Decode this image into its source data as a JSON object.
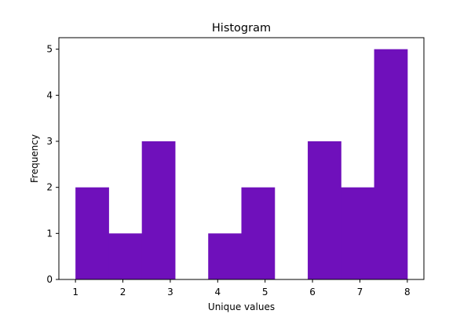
{
  "chart_data": {
    "type": "bar",
    "title": "Histogram",
    "xlabel": "Unique values",
    "ylabel": "Frequency",
    "bin_edges": [
      1.0,
      1.7,
      2.4,
      3.1,
      3.8,
      4.5,
      5.2,
      5.9,
      6.6,
      7.3,
      8.0
    ],
    "values": [
      2,
      1,
      3,
      0,
      1,
      2,
      0,
      3,
      2,
      5
    ],
    "x_ticks": [
      1,
      2,
      3,
      4,
      5,
      6,
      7,
      8
    ],
    "y_ticks": [
      0,
      1,
      2,
      3,
      4,
      5
    ],
    "xlim": [
      0.65,
      8.35
    ],
    "ylim": [
      0,
      5.25
    ],
    "bar_color": "#6f10bb",
    "grid": false,
    "legend": "none"
  }
}
